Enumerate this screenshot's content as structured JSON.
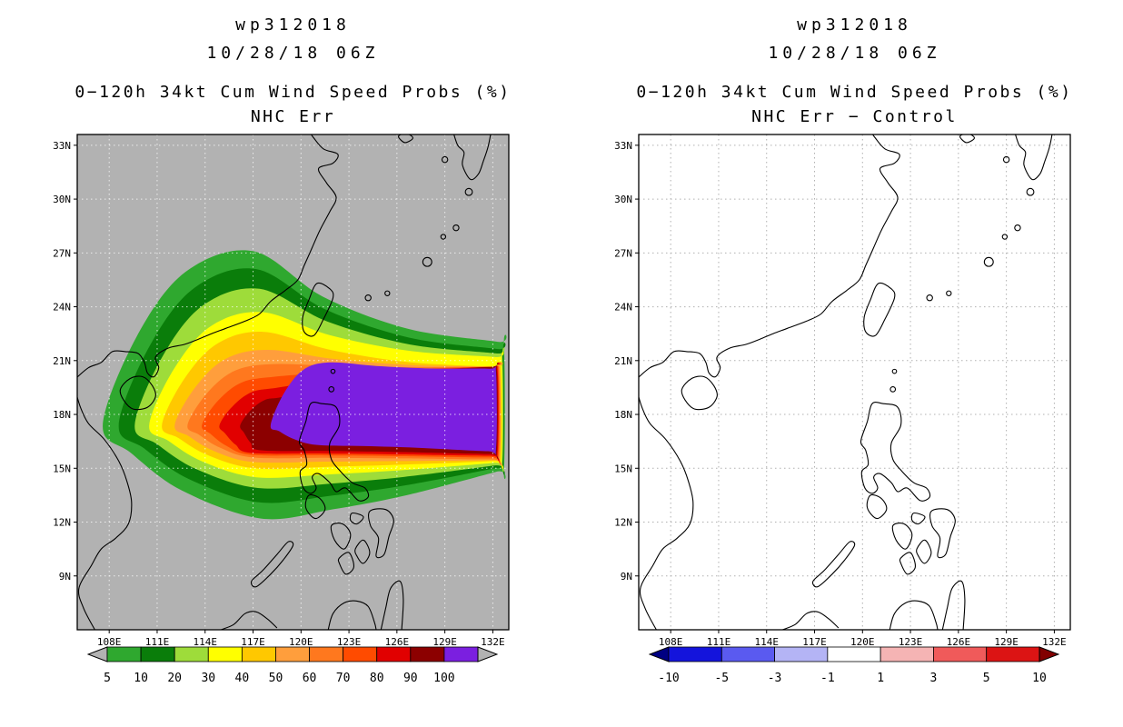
{
  "panels": [
    {
      "header_line1": "wp312018",
      "header_line2": "10/28/18 06Z",
      "title": "0−120h 34kt Cum Wind Speed Probs (%)",
      "subtitle": "NHC Err",
      "map_background": "#b2b2b2",
      "grid_color": "rgba(255,255,255,0.75)",
      "colorbar": {
        "labels": [
          "5",
          "10",
          "20",
          "30",
          "40",
          "50",
          "60",
          "70",
          "80",
          "90",
          "100"
        ],
        "cell_colors": [
          "#2fa82f",
          "#0a7d0a",
          "#9edc3a",
          "#ffff00",
          "#ffc800",
          "#ff9e3c",
          "#ff781e",
          "#ff4b00",
          "#e10000",
          "#8c0000",
          "#7b1fe0"
        ],
        "left_arrow_color": "#b2b2b2",
        "right_arrow_color": "#b2b2b2"
      }
    },
    {
      "header_line1": "wp312018",
      "header_line2": "10/28/18 06Z",
      "title": "0−120h 34kt Cum Wind Speed Probs (%)",
      "subtitle": "NHC Err − Control",
      "map_background": "#ffffff",
      "grid_color": "#b0b0b0",
      "colorbar": {
        "labels": [
          "-10",
          "-5",
          "-3",
          "-1",
          "1",
          "3",
          "5",
          "10"
        ],
        "cell_colors": [
          "#1414dc",
          "#5a5af0",
          "#b4b4f5",
          "#ffffff",
          "#f5b4b4",
          "#f05a5a",
          "#dc1414"
        ],
        "left_arrow_color": "#000082",
        "right_arrow_color": "#820000"
      }
    }
  ],
  "map": {
    "lon_range": [
      106.0,
      133.0
    ],
    "lat_range": [
      6.0,
      33.6
    ],
    "lon_tick_values": [
      108,
      111,
      114,
      117,
      120,
      123,
      126,
      129,
      132
    ],
    "lon_tick_labels": [
      "108E",
      "111E",
      "114E",
      "117E",
      "120E",
      "123E",
      "126E",
      "129E",
      "132E"
    ],
    "lat_tick_values": [
      9,
      12,
      15,
      18,
      21,
      24,
      27,
      30,
      33
    ],
    "lat_tick_labels": [
      "9N",
      "12N",
      "15N",
      "18N",
      "21N",
      "24N",
      "27N",
      "30N",
      "33N"
    ]
  },
  "chart_data": [
    {
      "type": "heatmap",
      "subtype": "cumulative-wind-probability-contour-map",
      "storm_id": "wp312018",
      "init_time": "10/28/18 06Z",
      "title": "0−120h 34kt Cum Wind Speed Probs (%)",
      "subtitle": "NHC Err",
      "x_ticks": [
        "108E",
        "111E",
        "114E",
        "117E",
        "120E",
        "123E",
        "126E",
        "129E",
        "132E"
      ],
      "y_ticks": [
        "9N",
        "12N",
        "15N",
        "18N",
        "21N",
        "24N",
        "27N",
        "30N",
        "33N"
      ],
      "levels_percent": [
        5,
        10,
        20,
        30,
        40,
        50,
        60,
        70,
        80,
        90,
        100
      ],
      "legend_position": "bottom",
      "grid": true,
      "contours": [
        {
          "level": 5,
          "west_lon": 107.6,
          "north_lat": 27.1,
          "south_lat": 12.2,
          "east_lon": 132.7,
          "east_top_lat": 22.0,
          "east_bottom_lat": 14.8,
          "north_apex_lon": 117.0,
          "south_apex_lon": 117.5
        },
        {
          "level": 10,
          "west_lon": 108.6,
          "north_lat": 26.1,
          "south_lat": 13.1,
          "east_lon": 132.65,
          "east_top_lat": 21.6,
          "east_bottom_lat": 15.0,
          "north_apex_lon": 117.2,
          "south_apex_lon": 117.4
        },
        {
          "level": 20,
          "west_lon": 109.6,
          "north_lat": 25.0,
          "south_lat": 13.9,
          "east_lon": 132.6,
          "east_top_lat": 21.35,
          "east_bottom_lat": 15.15,
          "north_apex_lon": 117.4,
          "south_apex_lon": 117.3
        },
        {
          "level": 30,
          "west_lon": 110.5,
          "north_lat": 23.7,
          "south_lat": 14.5,
          "east_lon": 132.55,
          "east_top_lat": 21.15,
          "east_bottom_lat": 15.3,
          "north_apex_lon": 117.6,
          "south_apex_lon": 117.2
        },
        {
          "level": 40,
          "west_lon": 111.3,
          "north_lat": 22.6,
          "south_lat": 15.0,
          "east_lon": 132.5,
          "east_top_lat": 20.6,
          "east_bottom_lat": 15.4,
          "north_apex_lon": 117.7,
          "south_apex_lon": 117.1
        },
        {
          "level": 50,
          "west_lon": 112.1,
          "north_lat": 21.6,
          "south_lat": 15.35,
          "east_lon": 132.45,
          "east_top_lat": 20.6,
          "east_bottom_lat": 15.45,
          "north_apex_lon": 117.9,
          "south_apex_lon": 117.0
        },
        {
          "level": 60,
          "west_lon": 112.9,
          "north_lat": 20.8,
          "south_lat": 15.6,
          "east_lon": 132.4,
          "east_top_lat": 20.6,
          "east_bottom_lat": 15.5,
          "north_apex_lon": 118.1,
          "south_apex_lon": 117.0
        },
        {
          "level": 70,
          "west_lon": 113.8,
          "north_lat": 20.1,
          "south_lat": 15.75,
          "east_lon": 132.35,
          "east_top_lat": 20.6,
          "east_bottom_lat": 15.6,
          "north_apex_lon": 118.3,
          "south_apex_lon": 116.9
        },
        {
          "level": 80,
          "west_lon": 114.9,
          "north_lat": 19.5,
          "south_lat": 15.85,
          "east_lon": 132.3,
          "east_top_lat": 20.6,
          "east_bottom_lat": 15.7,
          "north_apex_lon": 118.6,
          "south_apex_lon": 116.9
        },
        {
          "level": 90,
          "west_lon": 116.2,
          "north_lat": 19.0,
          "south_lat": 16.0,
          "east_lon": 132.25,
          "east_top_lat": 20.6,
          "east_bottom_lat": 15.8,
          "north_apex_lon": 119.0,
          "south_apex_lon": 117.5
        },
        {
          "level": 100,
          "west_lon": 118.1,
          "north_lat": 20.9,
          "south_lat": 16.3,
          "east_lon": 132.2,
          "east_top_lat": 20.5,
          "east_bottom_lat": 15.95,
          "north_apex_lon": 121.8,
          "south_apex_lon": 121.0
        }
      ]
    },
    {
      "type": "heatmap",
      "subtype": "probability-difference-map",
      "storm_id": "wp312018",
      "init_time": "10/28/18 06Z",
      "title": "0−120h 34kt Cum Wind Speed Probs (%)",
      "subtitle": "NHC Err − Control",
      "x_ticks": [
        "108E",
        "111E",
        "114E",
        "117E",
        "120E",
        "123E",
        "126E",
        "129E",
        "132E"
      ],
      "y_ticks": [
        "9N",
        "12N",
        "15N",
        "18N",
        "21N",
        "24N",
        "27N",
        "30N",
        "33N"
      ],
      "levels_percent": [
        -10,
        -5,
        -3,
        -1,
        1,
        3,
        5,
        10
      ],
      "legend_position": "bottom",
      "grid": true,
      "contours": [],
      "note": "no shaded differences visible (all values within ±1)"
    }
  ]
}
